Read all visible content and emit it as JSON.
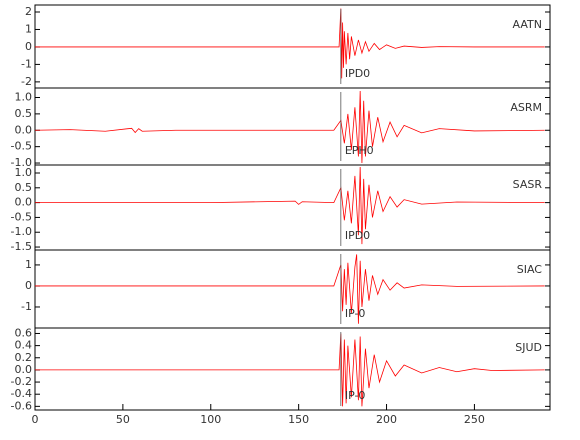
{
  "chart_data": [
    {
      "type": "line",
      "station": "AATN",
      "phase": "IPD0",
      "pick_x": 174,
      "color": "#ff0000",
      "xlim": [
        0,
        293
      ],
      "ylim": [
        -2.35,
        2.4
      ],
      "yticks": [
        -2,
        -1,
        0,
        1,
        2
      ],
      "x": [
        0,
        170,
        173,
        174,
        174.5,
        175,
        175.5,
        176,
        177,
        178,
        179,
        180,
        182,
        184,
        186,
        188,
        190,
        193,
        196,
        200,
        205,
        210,
        220,
        230,
        250,
        290
      ],
      "values": [
        0,
        0,
        0,
        2.2,
        -1.8,
        1.4,
        -1.2,
        0.9,
        -1.0,
        0.8,
        -0.7,
        0.6,
        -0.5,
        0.4,
        -0.35,
        0.3,
        -0.25,
        0.2,
        -0.15,
        0.12,
        -0.08,
        0.05,
        -0.03,
        0.02,
        0,
        0
      ]
    },
    {
      "type": "line",
      "station": "ASRM",
      "phase": "EPH0",
      "pick_x": 174,
      "color": "#ff0000",
      "xlim": [
        0,
        293
      ],
      "ylim": [
        -1.06,
        1.29
      ],
      "yticks": [
        {
          "value": -1,
          "label": "-1.0"
        },
        -0.5,
        {
          "value": 0,
          "label": "0.0"
        },
        0.5,
        {
          "value": 1,
          "label": "1.0"
        }
      ],
      "x": [
        0,
        20,
        40,
        55,
        57,
        59,
        61,
        80,
        170,
        174,
        176,
        178,
        180,
        182,
        184,
        185,
        186,
        187,
        188,
        190,
        192,
        195,
        198,
        202,
        206,
        210,
        220,
        230,
        250,
        290
      ],
      "values": [
        0,
        0.02,
        -0.03,
        0.06,
        -0.07,
        0.05,
        -0.03,
        0,
        0,
        0.3,
        -0.4,
        0.5,
        -0.6,
        0.7,
        -0.8,
        1.2,
        -1.0,
        0.9,
        -0.8,
        0.6,
        -0.5,
        0.4,
        -0.35,
        0.25,
        -0.2,
        0.15,
        -0.08,
        0.05,
        -0.02,
        0
      ]
    },
    {
      "type": "line",
      "station": "SASR",
      "phase": "IPD0",
      "pick_x": 174,
      "color": "#ff0000",
      "xlim": [
        0,
        293
      ],
      "ylim": [
        -1.6,
        1.27
      ],
      "yticks": [
        -1.5,
        {
          "value": -1,
          "label": "-1.0"
        },
        -0.5,
        {
          "value": 0,
          "label": "0.0"
        },
        0.5,
        {
          "value": 1,
          "label": "1.0"
        }
      ],
      "x": [
        0,
        100,
        148,
        150,
        152,
        170,
        174,
        176,
        178,
        180,
        182,
        184,
        185,
        186,
        187,
        188,
        190,
        192,
        195,
        198,
        202,
        206,
        210,
        220,
        240,
        290
      ],
      "values": [
        0,
        0,
        0.05,
        -0.06,
        0.03,
        0,
        0.5,
        -0.6,
        0.4,
        -0.7,
        0.9,
        -1.1,
        1.2,
        -1.4,
        0.8,
        -0.9,
        0.6,
        -0.5,
        0.4,
        -0.3,
        0.2,
        -0.15,
        0.1,
        -0.05,
        0.02,
        0
      ]
    },
    {
      "type": "line",
      "station": "SIAC",
      "phase": "IP-0",
      "pick_x": 174,
      "color": "#ff0000",
      "xlim": [
        0,
        293
      ],
      "ylim": [
        -2,
        1.71
      ],
      "yticks": [
        -1,
        0,
        1
      ],
      "x": [
        0,
        100,
        170,
        174,
        175,
        176,
        177,
        178,
        180,
        182,
        183,
        184,
        185,
        186,
        188,
        190,
        192,
        195,
        198,
        202,
        206,
        210,
        220,
        240,
        290
      ],
      "values": [
        0,
        0,
        0,
        1.0,
        -1.2,
        0.8,
        -0.9,
        1.1,
        -1.3,
        0.9,
        1.5,
        -1.8,
        1.2,
        -1.0,
        0.8,
        -0.7,
        0.5,
        -0.4,
        0.3,
        -0.2,
        0.15,
        -0.1,
        0.05,
        -0.02,
        0
      ]
    },
    {
      "type": "line",
      "station": "SJUD",
      "phase": "IP-0",
      "pick_x": 174,
      "color": "#ff0000",
      "xlim": [
        0,
        293
      ],
      "ylim": [
        -0.66,
        0.69
      ],
      "yticks": [
        -0.6,
        -0.4,
        -0.2,
        {
          "value": 0,
          "label": "0.0"
        },
        0.2,
        0.4,
        0.6
      ],
      "xticks": [
        0,
        50,
        100,
        150,
        200,
        250
      ],
      "x": [
        0,
        170,
        173,
        174,
        175,
        176,
        177,
        178,
        180,
        182,
        184,
        185,
        186,
        188,
        190,
        193,
        196,
        200,
        205,
        210,
        220,
        230,
        240,
        250,
        260,
        290
      ],
      "values": [
        0,
        0,
        0,
        0.6,
        -0.6,
        0.5,
        -0.55,
        0.4,
        -0.45,
        0.5,
        -0.5,
        0.55,
        -0.6,
        0.35,
        -0.3,
        0.25,
        -0.2,
        0.15,
        -0.1,
        0.08,
        -0.05,
        0.04,
        -0.03,
        0.02,
        -0.01,
        0
      ]
    }
  ]
}
